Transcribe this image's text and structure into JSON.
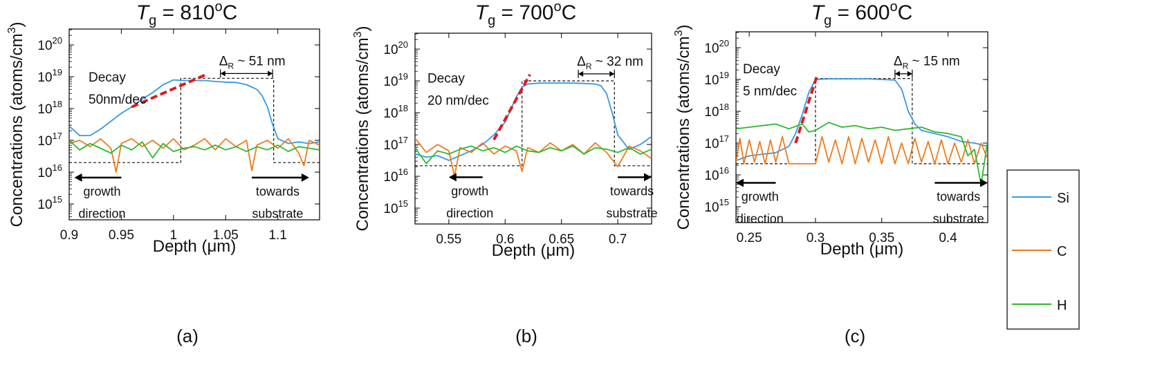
{
  "figure": {
    "legend": {
      "title": "",
      "entries": [
        "Si",
        "C",
        "H"
      ]
    }
  },
  "colors": {
    "Si": "#3399e6",
    "C": "#ef7a1a",
    "H": "#2eb82e",
    "fit": "#e11a1a",
    "box": "#111111",
    "axis": "#000000"
  },
  "chart_data": [
    {
      "type": "line",
      "panel_label": "(a)",
      "title_prefix": "T",
      "title_sub": "g",
      "title_value": " = 810",
      "title_sup": "o",
      "title_unit": "C",
      "ylabel": "Concentrations (atoms/cm",
      "ylabel_sup": "3",
      "ylabel_close": ")",
      "xlabel": "Depth (μm)",
      "xlim": [
        0.9,
        1.14
      ],
      "ylim_log": [
        14.5,
        20.5
      ],
      "xticks": [
        0.9,
        0.95,
        1.0,
        1.05,
        1.1
      ],
      "xtick_labels": [
        "0.9",
        "0.95",
        "1",
        "1.05",
        "1.1"
      ],
      "yticks": [
        15,
        16,
        17,
        18,
        19,
        20
      ],
      "annotations": {
        "decay_line1": "Decay",
        "decay_line2": "50nm/dec",
        "delta_symbol": "Δ",
        "delta_sub": "R",
        "delta_text": " ~ 51 nm",
        "growth1": "growth",
        "growth2": "direction",
        "towards1": "towards",
        "towards2": "substrate"
      },
      "series": [
        {
          "name": "Si",
          "x": [
            0.9,
            0.91,
            0.92,
            0.93,
            0.94,
            0.95,
            0.96,
            0.97,
            0.98,
            0.99,
            1.0,
            1.01,
            1.02,
            1.03,
            1.04,
            1.05,
            1.06,
            1.07,
            1.08,
            1.085,
            1.09,
            1.095,
            1.1,
            1.11,
            1.12,
            1.13,
            1.14
          ],
          "y_log": [
            17.45,
            17.15,
            17.15,
            17.35,
            17.6,
            17.85,
            18.05,
            18.3,
            18.5,
            18.75,
            18.9,
            18.88,
            18.88,
            18.88,
            18.85,
            18.83,
            18.82,
            18.75,
            18.6,
            18.4,
            18.05,
            17.5,
            17.05,
            16.9,
            16.95,
            16.9,
            16.95
          ]
        },
        {
          "name": "C",
          "x": [
            0.9,
            0.91,
            0.92,
            0.93,
            0.94,
            0.945,
            0.95,
            0.96,
            0.97,
            0.98,
            0.99,
            1.0,
            1.01,
            1.02,
            1.03,
            1.04,
            1.05,
            1.06,
            1.07,
            1.075,
            1.08,
            1.09,
            1.1,
            1.11,
            1.12,
            1.125,
            1.13,
            1.14
          ],
          "y_log": [
            16.9,
            17.0,
            16.8,
            17.05,
            16.75,
            16.0,
            16.9,
            17.05,
            16.8,
            17.0,
            16.75,
            17.05,
            16.7,
            16.85,
            17.05,
            16.7,
            17.05,
            16.8,
            17.0,
            16.05,
            16.85,
            17.0,
            16.75,
            17.05,
            16.6,
            16.2,
            17.0,
            16.85
          ]
        },
        {
          "name": "H",
          "x": [
            0.9,
            0.91,
            0.92,
            0.93,
            0.94,
            0.95,
            0.96,
            0.97,
            0.98,
            0.99,
            1.0,
            1.01,
            1.02,
            1.03,
            1.04,
            1.05,
            1.06,
            1.07,
            1.08,
            1.09,
            1.1,
            1.11,
            1.12,
            1.13,
            1.14
          ],
          "y_log": [
            17.0,
            16.7,
            16.9,
            16.75,
            16.6,
            16.85,
            16.7,
            16.95,
            16.45,
            16.9,
            16.65,
            16.75,
            16.8,
            16.7,
            16.85,
            16.7,
            16.8,
            16.65,
            16.8,
            16.7,
            16.85,
            16.65,
            16.8,
            16.75,
            16.7
          ]
        }
      ],
      "fit_line": {
        "x": [
          0.96,
          1.03
        ],
        "y_log": [
          18.05,
          19.05
        ]
      },
      "dashed_box": {
        "x_start": 0.9,
        "x_rise": 1.007,
        "x_fall": 1.096,
        "x_end": 1.14,
        "y_low_log": 16.3,
        "y_high_log": 18.95
      },
      "delta_span": {
        "x1": 1.045,
        "x2": 1.095,
        "y_log": 19.1
      },
      "growth_arrow": {
        "x_from": 0.95,
        "x_to": 0.905,
        "y_log": 15.83
      },
      "towards_arrow": {
        "x_from": 1.075,
        "x_to": 1.13,
        "y_log": 15.83
      }
    },
    {
      "type": "line",
      "panel_label": "(b)",
      "title_prefix": "T",
      "title_sub": "g",
      "title_value": " = 700",
      "title_sup": "o",
      "title_unit": "C",
      "ylabel": "Concentrations (atoms/cm",
      "ylabel_sup": "3",
      "ylabel_close": ")",
      "xlabel": "Depth (μm)",
      "xlim": [
        0.52,
        0.73
      ],
      "ylim_log": [
        14.5,
        20.5
      ],
      "xticks": [
        0.55,
        0.6,
        0.65,
        0.7
      ],
      "xtick_labels": [
        "0.55",
        "0.6",
        "0.65",
        "0.7"
      ],
      "yticks": [
        15,
        16,
        17,
        18,
        19,
        20
      ],
      "annotations": {
        "decay_line1": "Decay",
        "decay_line2": "20 nm/dec",
        "delta_symbol": "Δ",
        "delta_sub": "R",
        "delta_text": " ~ 32 nm",
        "growth1": "growth",
        "growth2": "direction",
        "towards1": "towards",
        "towards2": "substrate"
      },
      "series": [
        {
          "name": "Si",
          "x": [
            0.52,
            0.53,
            0.54,
            0.55,
            0.56,
            0.57,
            0.58,
            0.59,
            0.6,
            0.605,
            0.61,
            0.615,
            0.62,
            0.63,
            0.64,
            0.65,
            0.66,
            0.67,
            0.68,
            0.685,
            0.69,
            0.695,
            0.7,
            0.71,
            0.72,
            0.73
          ],
          "y_log": [
            16.7,
            16.6,
            16.65,
            16.5,
            16.65,
            16.8,
            17.0,
            17.3,
            17.7,
            18.1,
            18.5,
            18.8,
            18.9,
            18.93,
            18.93,
            18.93,
            18.93,
            18.92,
            18.9,
            18.85,
            18.6,
            18.0,
            17.3,
            16.85,
            17.0,
            17.25
          ]
        },
        {
          "name": "C",
          "x": [
            0.52,
            0.53,
            0.54,
            0.55,
            0.555,
            0.56,
            0.57,
            0.58,
            0.59,
            0.6,
            0.61,
            0.615,
            0.62,
            0.63,
            0.64,
            0.65,
            0.66,
            0.67,
            0.68,
            0.69,
            0.7,
            0.71,
            0.72,
            0.73
          ],
          "y_log": [
            17.2,
            16.75,
            17.0,
            16.8,
            16.0,
            16.9,
            16.75,
            17.05,
            16.7,
            16.95,
            16.8,
            16.15,
            16.9,
            16.75,
            17.05,
            16.8,
            17.0,
            16.7,
            17.05,
            16.75,
            16.3,
            16.95,
            16.8,
            16.55
          ]
        },
        {
          "name": "H",
          "x": [
            0.52,
            0.53,
            0.54,
            0.55,
            0.56,
            0.57,
            0.58,
            0.59,
            0.6,
            0.61,
            0.62,
            0.63,
            0.64,
            0.65,
            0.66,
            0.67,
            0.68,
            0.69,
            0.7,
            0.71,
            0.72,
            0.73
          ],
          "y_log": [
            16.9,
            16.4,
            16.8,
            16.7,
            16.85,
            16.95,
            16.8,
            16.9,
            16.75,
            16.95,
            16.8,
            16.75,
            16.9,
            16.8,
            16.95,
            16.7,
            16.9,
            16.85,
            16.75,
            16.9,
            16.7,
            16.85
          ]
        }
      ],
      "fit_line": {
        "x": [
          0.59,
          0.622
        ],
        "y_log": [
          17.15,
          19.2
        ]
      },
      "dashed_box": {
        "x_start": 0.52,
        "x_rise": 0.615,
        "x_fall": 0.697,
        "x_end": 0.73,
        "y_low_log": 16.33,
        "y_high_log": 19.0
      },
      "delta_span": {
        "x1": 0.665,
        "x2": 0.697,
        "y_log": 19.22
      },
      "growth_arrow": {
        "x_from": 0.58,
        "x_to": 0.55,
        "y_log": 15.97
      },
      "towards_arrow": {
        "x_from": 0.7,
        "x_to": 0.73,
        "y_log": 15.97
      }
    },
    {
      "type": "line",
      "panel_label": "(c)",
      "title_prefix": "T",
      "title_sub": "g",
      "title_value": " = 600",
      "title_sup": "o",
      "title_unit": "C",
      "ylabel": "Concentrations (atoms/cm",
      "ylabel_sup": "3",
      "ylabel_close": ")",
      "xlabel": "Depth (μm)",
      "xlim": [
        0.24,
        0.43
      ],
      "ylim_log": [
        14.5,
        20.5
      ],
      "xticks": [
        0.25,
        0.3,
        0.35,
        0.4
      ],
      "xtick_labels": [
        "0.25",
        "0.3",
        "0.35",
        "0.4"
      ],
      "yticks": [
        15,
        16,
        17,
        18,
        19,
        20
      ],
      "annotations": {
        "decay_line1": "Decay",
        "decay_line2": "5 nm/dec",
        "delta_symbol": "Δ",
        "delta_sub": "R",
        "delta_text": " ~ 15 nm",
        "growth1": "growth",
        "growth2": "direction",
        "towards1": "towards",
        "towards2": "substrate"
      },
      "series": [
        {
          "name": "Si",
          "x": [
            0.24,
            0.25,
            0.26,
            0.27,
            0.28,
            0.285,
            0.29,
            0.295,
            0.3,
            0.31,
            0.32,
            0.33,
            0.34,
            0.35,
            0.36,
            0.365,
            0.37,
            0.375,
            0.38,
            0.39,
            0.4,
            0.41,
            0.42,
            0.43
          ],
          "y_log": [
            16.45,
            16.6,
            16.65,
            16.7,
            16.9,
            17.3,
            17.9,
            18.6,
            19.0,
            19.02,
            19.02,
            19.02,
            19.02,
            19.0,
            18.98,
            18.7,
            18.0,
            17.6,
            17.4,
            17.3,
            17.2,
            17.05,
            17.0,
            16.9
          ]
        },
        {
          "name": "C",
          "x": [
            0.24,
            0.243,
            0.246,
            0.25,
            0.254,
            0.258,
            0.262,
            0.266,
            0.27,
            0.275,
            0.28,
            0.285,
            0.29,
            0.293,
            0.296,
            0.3,
            0.305,
            0.31,
            0.315,
            0.32,
            0.325,
            0.33,
            0.335,
            0.34,
            0.345,
            0.35,
            0.355,
            0.36,
            0.365,
            0.37,
            0.375,
            0.38,
            0.385,
            0.39,
            0.395,
            0.4,
            0.405,
            0.41,
            0.415,
            0.42,
            0.425,
            0.43
          ],
          "y_log": [
            16.4,
            17.15,
            16.35,
            17.1,
            16.4,
            17.05,
            16.35,
            17.1,
            16.4,
            17.2,
            16.35,
            16.35,
            16.35,
            16.35,
            16.35,
            16.35,
            17.2,
            16.4,
            17.1,
            16.35,
            17.2,
            16.35,
            17.15,
            16.4,
            17.1,
            16.35,
            17.2,
            16.35,
            17.0,
            16.35,
            17.15,
            16.4,
            17.05,
            16.35,
            17.1,
            16.35,
            17.0,
            16.4,
            17.1,
            16.35,
            17.0,
            16.5
          ]
        },
        {
          "name": "H",
          "x": [
            0.24,
            0.25,
            0.26,
            0.27,
            0.28,
            0.29,
            0.295,
            0.3,
            0.31,
            0.32,
            0.33,
            0.34,
            0.35,
            0.36,
            0.37,
            0.38,
            0.39,
            0.4,
            0.41,
            0.415,
            0.42,
            0.425,
            0.43
          ],
          "y_log": [
            17.45,
            17.5,
            17.55,
            17.6,
            17.45,
            17.6,
            17.35,
            17.4,
            17.65,
            17.5,
            17.55,
            17.45,
            17.5,
            17.4,
            17.45,
            17.5,
            17.35,
            17.3,
            17.2,
            16.6,
            16.8,
            15.7,
            17.1
          ]
        }
      ],
      "fit_line": {
        "x": [
          0.285,
          0.301
        ],
        "y_log": [
          17.0,
          19.1
        ]
      },
      "dashed_box": {
        "x_start": 0.24,
        "x_rise": 0.3,
        "x_fall": 0.373,
        "x_end": 0.43,
        "y_low_log": 16.35,
        "y_high_log": 19.03
      },
      "delta_span": {
        "x1": 0.36,
        "x2": 0.373,
        "y_log": 19.18
      },
      "growth_arrow": {
        "x_from": 0.27,
        "x_to": 0.24,
        "y_log": 15.75
      },
      "towards_arrow": {
        "x_from": 0.39,
        "x_to": 0.43,
        "y_log": 15.75
      }
    }
  ]
}
